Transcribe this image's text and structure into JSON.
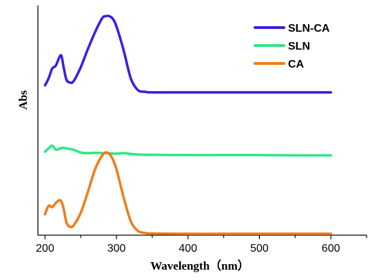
{
  "chart_data": {
    "type": "line",
    "xlabel": "Wavelength（nm）",
    "ylabel": "Abs",
    "xlim": [
      190,
      650
    ],
    "x_ticks": [
      200,
      300,
      400,
      500,
      600
    ],
    "y_ticks_shown": false,
    "grid": false,
    "legend_position": "top-right",
    "series": [
      {
        "name": "SLN-CA",
        "color": "#3b1de6",
        "x": [
          200,
          205,
          210,
          215,
          220,
          223,
          226,
          230,
          235,
          240,
          250,
          260,
          270,
          280,
          285,
          290,
          295,
          300,
          310,
          320,
          330,
          340,
          350,
          400,
          450,
          500,
          550,
          600
        ],
        "y": [
          5.35,
          5.6,
          5.95,
          6.05,
          6.35,
          6.4,
          6.0,
          5.55,
          5.45,
          5.5,
          6.0,
          6.65,
          7.25,
          7.75,
          7.82,
          7.82,
          7.72,
          7.45,
          6.6,
          5.6,
          5.18,
          5.12,
          5.1,
          5.1,
          5.1,
          5.1,
          5.1,
          5.1
        ]
      },
      {
        "name": "SLN",
        "color": "#2ee883",
        "x": [
          200,
          205,
          210,
          215,
          220,
          225,
          230,
          240,
          250,
          260,
          270,
          280,
          290,
          300,
          310,
          320,
          330,
          350,
          400,
          450,
          500,
          550,
          600
        ],
        "y": [
          2.98,
          3.1,
          3.2,
          3.05,
          3.08,
          3.12,
          3.1,
          3.05,
          2.95,
          2.93,
          2.94,
          2.93,
          2.92,
          2.91,
          2.93,
          2.9,
          2.88,
          2.87,
          2.86,
          2.86,
          2.86,
          2.85,
          2.85
        ]
      },
      {
        "name": "CA",
        "color": "#f07d1a",
        "x": [
          200,
          205,
          210,
          215,
          220,
          223,
          226,
          230,
          235,
          240,
          250,
          260,
          270,
          280,
          285,
          290,
          295,
          300,
          310,
          320,
          330,
          340,
          350,
          400,
          450,
          500,
          550,
          600
        ],
        "y": [
          0.75,
          1.05,
          1.0,
          1.15,
          1.25,
          1.2,
          0.95,
          0.45,
          0.3,
          0.35,
          0.8,
          1.55,
          2.35,
          2.85,
          2.95,
          2.9,
          2.7,
          2.35,
          1.35,
          0.5,
          0.15,
          0.08,
          0.06,
          0.05,
          0.05,
          0.05,
          0.05,
          0.05
        ]
      }
    ]
  }
}
